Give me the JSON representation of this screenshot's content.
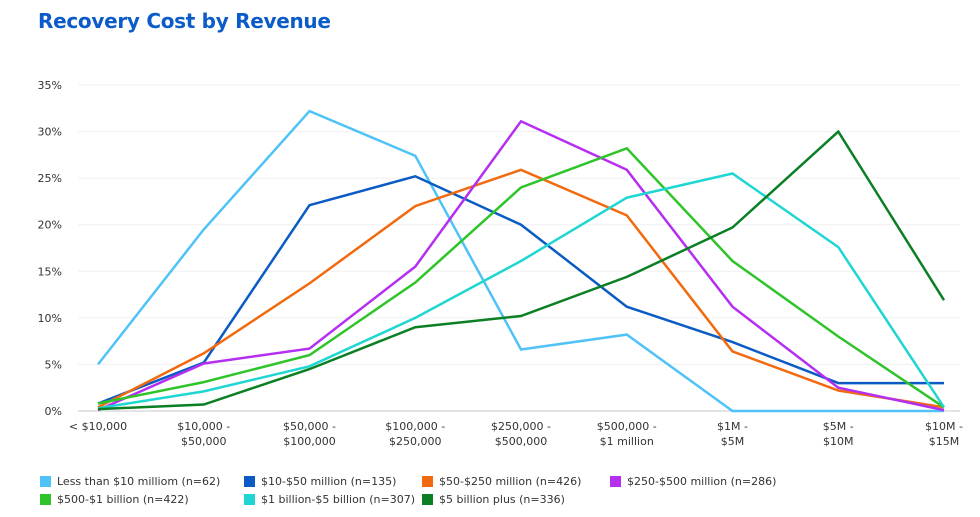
{
  "chart_data": {
    "type": "line",
    "title": "Recovery Cost by Revenue",
    "xlabel": "",
    "ylabel": "",
    "ylim": [
      0,
      35
    ],
    "yticks": [
      "0%",
      "5%",
      "10%",
      "15%",
      "20%",
      "25%",
      "30%",
      "35%"
    ],
    "grid": true,
    "legend_position": "bottom",
    "categories": [
      [
        "< $10,000"
      ],
      [
        "$10,000 -",
        "$50,000"
      ],
      [
        "$50,000 -",
        "$100,000"
      ],
      [
        "$100,000 -",
        "$250,000"
      ],
      [
        "$250,000 -",
        "$500,000"
      ],
      [
        "$500,000 -",
        "$1 million"
      ],
      [
        "$1M -",
        "$5M"
      ],
      [
        "$5M -",
        "$10M"
      ],
      [
        "$10M -",
        "$15M"
      ]
    ],
    "series": [
      {
        "name": "Less than $10 milliom (n=62)",
        "color": "#4fc3f7",
        "values": [
          5.0,
          19.5,
          32.2,
          27.4,
          6.6,
          8.2,
          0.0,
          0.0,
          0.0
        ]
      },
      {
        "name": "$10-$50 million (n=135)",
        "color": "#0a5bc4",
        "values": [
          0.8,
          5.2,
          22.1,
          25.2,
          20.0,
          11.2,
          7.4,
          3.0,
          3.0
        ]
      },
      {
        "name": "$50-$250 million (n=426)",
        "color": "#f26a0f",
        "values": [
          0.4,
          6.2,
          13.7,
          22.0,
          25.9,
          21.0,
          6.4,
          2.2,
          0.4
        ]
      },
      {
        "name": "$250-$500 million (n=286)",
        "color": "#b52ff0",
        "values": [
          0.1,
          5.1,
          6.7,
          15.5,
          31.1,
          25.9,
          11.2,
          2.5,
          0.1
        ]
      },
      {
        "name": "$500-$1 billion (n=422)",
        "color": "#2ec42a",
        "values": [
          0.8,
          3.1,
          6.0,
          13.8,
          24.0,
          28.2,
          16.1,
          8.0,
          0.4
        ]
      },
      {
        "name": "$1 billion-$5 billion (n=307)",
        "color": "#1fd6d3",
        "values": [
          0.3,
          2.1,
          4.8,
          10.0,
          16.1,
          22.9,
          25.5,
          17.6,
          0.4
        ]
      },
      {
        "name": "$5 billion plus (n=336)",
        "color": "#0b7f24",
        "values": [
          0.2,
          0.7,
          4.5,
          9.0,
          10.2,
          14.4,
          19.7,
          30.0,
          11.9
        ]
      }
    ]
  }
}
